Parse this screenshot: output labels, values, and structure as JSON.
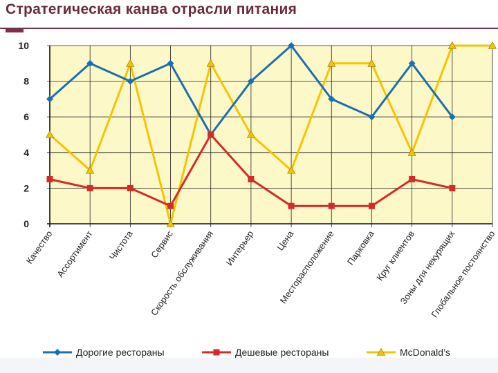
{
  "title": "Стратегическая канва отрасли питания",
  "colors": {
    "title": "#6b2a3a",
    "plot_background": "#fdf8c8",
    "grid": "#222222",
    "expensive": "#1a6faf",
    "cheap": "#d42a28",
    "mcdonalds": "#f5c400"
  },
  "chart_data": {
    "type": "line",
    "categories": [
      "Качество",
      "Ассортимент",
      "Чистота",
      "Сервис",
      "Скорость обслуживания",
      "Интерьер",
      "Цена",
      "Месторасположение",
      "Парковка",
      "Круг клиентов",
      "Зоны для некурящих",
      "Глобальное постоянство"
    ],
    "ylim": [
      0,
      10
    ],
    "yticks": [
      "0",
      "2",
      "4",
      "6",
      "8",
      "10"
    ],
    "grid": true,
    "legend_position": "bottom",
    "series": [
      {
        "name": "Дорогие рестораны",
        "marker": "diamond",
        "color": "#1a6faf",
        "values": [
          7,
          9,
          8,
          9,
          5,
          8,
          10,
          7,
          6,
          9,
          6,
          null
        ]
      },
      {
        "name": "Дешевые рестораны",
        "marker": "square",
        "color": "#d42a28",
        "values": [
          2.5,
          2,
          2,
          1,
          5,
          2.5,
          1,
          1,
          1,
          2.5,
          2,
          null
        ]
      },
      {
        "name": "McDonald’s",
        "marker": "triangle",
        "color": "#f5c400",
        "values": [
          5,
          3,
          9,
          0,
          9,
          5,
          3,
          9,
          9,
          4,
          10,
          10
        ]
      }
    ]
  }
}
